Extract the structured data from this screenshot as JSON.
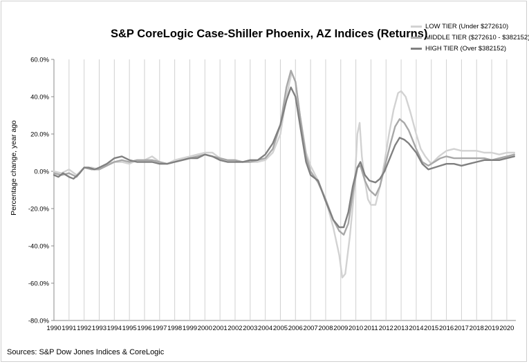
{
  "chart_data": {
    "type": "line",
    "title": "S&P CoreLogic Case-Shiller Phoenix, AZ Indices (Returns)",
    "ylabel": "Percentage change, year ago",
    "xlabel": "",
    "source": "Sources: S&P Dow Jones Indices & CoreLogic",
    "ylim": [
      -80,
      60
    ],
    "xlim": [
      1990,
      2020.6
    ],
    "y_ticks": [
      60,
      40,
      20,
      0,
      -20,
      -40,
      -60,
      -80
    ],
    "y_tick_labels": [
      "60.0%",
      "40.0%",
      "20.0%",
      "0.0%",
      "-20.0%",
      "-40.0%",
      "-60.0%",
      "-80.0%"
    ],
    "x_tick_labels": [
      "1990",
      "1991",
      "1992",
      "1993",
      "1994",
      "1995",
      "1996",
      "1997",
      "1998",
      "1999",
      "2000",
      "2001",
      "2002",
      "2003",
      "2004",
      "2005",
      "2006",
      "2007",
      "2008",
      "2009",
      "2010",
      "2011",
      "2012",
      "2013",
      "2014",
      "2015",
      "2016",
      "2017",
      "2018",
      "2019",
      "2020"
    ],
    "grid": "vertical lines at each year",
    "legend_position": "top-right",
    "series": [
      {
        "name": "LOW TIER (Under $272610)",
        "color": "#d2d2d2",
        "points": [
          [
            1990,
            0
          ],
          [
            1990.5,
            -1
          ],
          [
            1991,
            1
          ],
          [
            1991.5,
            -2
          ],
          [
            1992,
            2
          ],
          [
            1992.5,
            2
          ],
          [
            1993,
            1
          ],
          [
            1993.5,
            4
          ],
          [
            1994,
            5
          ],
          [
            1994.5,
            5
          ],
          [
            1995,
            4
          ],
          [
            1995.5,
            6
          ],
          [
            1996,
            6
          ],
          [
            1996.5,
            8
          ],
          [
            1997,
            5
          ],
          [
            1997.5,
            4
          ],
          [
            1998,
            6
          ],
          [
            1998.5,
            7
          ],
          [
            1999,
            8
          ],
          [
            1999.5,
            9
          ],
          [
            2000,
            10
          ],
          [
            2000.5,
            10
          ],
          [
            2001,
            7
          ],
          [
            2001.5,
            6
          ],
          [
            2002,
            6
          ],
          [
            2002.5,
            5
          ],
          [
            2003,
            5
          ],
          [
            2003.5,
            5
          ],
          [
            2004,
            6
          ],
          [
            2004.5,
            10
          ],
          [
            2005,
            20
          ],
          [
            2005.4,
            40
          ],
          [
            2005.75,
            53
          ],
          [
            2006,
            48
          ],
          [
            2006.3,
            30
          ],
          [
            2006.7,
            10
          ],
          [
            2007,
            3
          ],
          [
            2007.5,
            -5
          ],
          [
            2008,
            -15
          ],
          [
            2008.5,
            -30
          ],
          [
            2008.9,
            -45
          ],
          [
            2009.1,
            -57
          ],
          [
            2009.3,
            -55
          ],
          [
            2009.6,
            -35
          ],
          [
            2009.9,
            -10
          ],
          [
            2010.1,
            20
          ],
          [
            2010.25,
            26
          ],
          [
            2010.4,
            8
          ],
          [
            2010.6,
            -5
          ],
          [
            2010.8,
            -15
          ],
          [
            2011,
            -18
          ],
          [
            2011.3,
            -18
          ],
          [
            2011.6,
            -8
          ],
          [
            2011.9,
            5
          ],
          [
            2012.2,
            20
          ],
          [
            2012.5,
            33
          ],
          [
            2012.8,
            42
          ],
          [
            2013,
            43
          ],
          [
            2013.3,
            40
          ],
          [
            2013.6,
            32
          ],
          [
            2014,
            20
          ],
          [
            2014.3,
            12
          ],
          [
            2014.6,
            8
          ],
          [
            2015,
            4
          ],
          [
            2015.5,
            8
          ],
          [
            2016,
            11
          ],
          [
            2016.5,
            12
          ],
          [
            2017,
            11
          ],
          [
            2017.5,
            11
          ],
          [
            2018,
            11
          ],
          [
            2018.5,
            10
          ],
          [
            2019,
            10
          ],
          [
            2019.5,
            9
          ],
          [
            2020,
            10
          ],
          [
            2020.5,
            10
          ]
        ]
      },
      {
        "name": "MIDDLE TIER ($272610 - $382152)",
        "color": "#a8a8a8",
        "points": [
          [
            1990,
            -1
          ],
          [
            1990.5,
            -2
          ],
          [
            1991,
            -1
          ],
          [
            1991.5,
            -3
          ],
          [
            1992,
            2
          ],
          [
            1992.5,
            1
          ],
          [
            1993,
            1
          ],
          [
            1993.5,
            3
          ],
          [
            1994,
            5
          ],
          [
            1994.5,
            6
          ],
          [
            1995,
            5
          ],
          [
            1995.5,
            6
          ],
          [
            1996,
            6
          ],
          [
            1996.5,
            6
          ],
          [
            1997,
            5
          ],
          [
            1997.5,
            4
          ],
          [
            1998,
            5
          ],
          [
            1998.5,
            6
          ],
          [
            1999,
            7
          ],
          [
            1999.5,
            8
          ],
          [
            2000,
            9
          ],
          [
            2000.5,
            8
          ],
          [
            2001,
            7
          ],
          [
            2001.5,
            6
          ],
          [
            2002,
            6
          ],
          [
            2002.5,
            5
          ],
          [
            2003,
            5
          ],
          [
            2003.5,
            6
          ],
          [
            2004,
            7
          ],
          [
            2004.5,
            12
          ],
          [
            2005,
            25
          ],
          [
            2005.4,
            45
          ],
          [
            2005.7,
            54
          ],
          [
            2006,
            48
          ],
          [
            2006.3,
            30
          ],
          [
            2006.7,
            8
          ],
          [
            2007,
            0
          ],
          [
            2007.5,
            -6
          ],
          [
            2008,
            -15
          ],
          [
            2008.5,
            -26
          ],
          [
            2008.9,
            -32
          ],
          [
            2009.2,
            -34
          ],
          [
            2009.5,
            -28
          ],
          [
            2009.8,
            -12
          ],
          [
            2010.1,
            2
          ],
          [
            2010.3,
            3
          ],
          [
            2010.6,
            -5
          ],
          [
            2010.9,
            -10
          ],
          [
            2011.3,
            -13
          ],
          [
            2011.6,
            -8
          ],
          [
            2011.9,
            2
          ],
          [
            2012.3,
            15
          ],
          [
            2012.6,
            24
          ],
          [
            2012.9,
            28
          ],
          [
            2013.2,
            26
          ],
          [
            2013.5,
            22
          ],
          [
            2014,
            12
          ],
          [
            2014.4,
            5
          ],
          [
            2014.8,
            3
          ],
          [
            2015.2,
            5
          ],
          [
            2015.6,
            7
          ],
          [
            2016,
            8
          ],
          [
            2016.5,
            7
          ],
          [
            2017,
            7
          ],
          [
            2017.5,
            7
          ],
          [
            2018,
            7
          ],
          [
            2018.5,
            7
          ],
          [
            2019,
            6
          ],
          [
            2019.5,
            7
          ],
          [
            2020,
            8
          ],
          [
            2020.5,
            9
          ]
        ]
      },
      {
        "name": "HIGH TIER (Over $382152)",
        "color": "#808080",
        "points": [
          [
            1990,
            -2
          ],
          [
            1990.3,
            -3
          ],
          [
            1990.6,
            -1
          ],
          [
            1991,
            -3
          ],
          [
            1991.3,
            -4
          ],
          [
            1991.7,
            -1
          ],
          [
            1992,
            2
          ],
          [
            1992.3,
            2
          ],
          [
            1992.7,
            1
          ],
          [
            1993,
            2
          ],
          [
            1993.5,
            4
          ],
          [
            1994,
            7
          ],
          [
            1994.5,
            8
          ],
          [
            1995,
            6
          ],
          [
            1995.5,
            5
          ],
          [
            1996,
            5
          ],
          [
            1996.5,
            5
          ],
          [
            1997,
            4
          ],
          [
            1997.5,
            4
          ],
          [
            1998,
            5
          ],
          [
            1998.5,
            6
          ],
          [
            1999,
            7
          ],
          [
            1999.5,
            7
          ],
          [
            2000,
            9
          ],
          [
            2000.5,
            8
          ],
          [
            2001,
            6
          ],
          [
            2001.5,
            5
          ],
          [
            2002,
            5
          ],
          [
            2002.5,
            5
          ],
          [
            2003,
            6
          ],
          [
            2003.5,
            6
          ],
          [
            2004,
            9
          ],
          [
            2004.5,
            15
          ],
          [
            2005,
            25
          ],
          [
            2005.4,
            38
          ],
          [
            2005.7,
            45
          ],
          [
            2006,
            40
          ],
          [
            2006.3,
            25
          ],
          [
            2006.7,
            5
          ],
          [
            2007,
            -2
          ],
          [
            2007.5,
            -5
          ],
          [
            2008,
            -16
          ],
          [
            2008.5,
            -26
          ],
          [
            2008.9,
            -30
          ],
          [
            2009.2,
            -30
          ],
          [
            2009.5,
            -22
          ],
          [
            2009.8,
            -8
          ],
          [
            2010.1,
            2
          ],
          [
            2010.3,
            5
          ],
          [
            2010.6,
            -2
          ],
          [
            2010.9,
            -5
          ],
          [
            2011.3,
            -6
          ],
          [
            2011.6,
            -4
          ],
          [
            2011.9,
            0
          ],
          [
            2012.3,
            8
          ],
          [
            2012.6,
            14
          ],
          [
            2012.9,
            18
          ],
          [
            2013.2,
            17
          ],
          [
            2013.5,
            15
          ],
          [
            2014,
            10
          ],
          [
            2014.4,
            4
          ],
          [
            2014.8,
            1
          ],
          [
            2015.2,
            2
          ],
          [
            2015.6,
            3
          ],
          [
            2016,
            4
          ],
          [
            2016.5,
            4
          ],
          [
            2017,
            3
          ],
          [
            2017.5,
            4
          ],
          [
            2018,
            5
          ],
          [
            2018.5,
            6
          ],
          [
            2019,
            6
          ],
          [
            2019.5,
            6
          ],
          [
            2020,
            7
          ],
          [
            2020.5,
            8
          ]
        ]
      }
    ]
  }
}
